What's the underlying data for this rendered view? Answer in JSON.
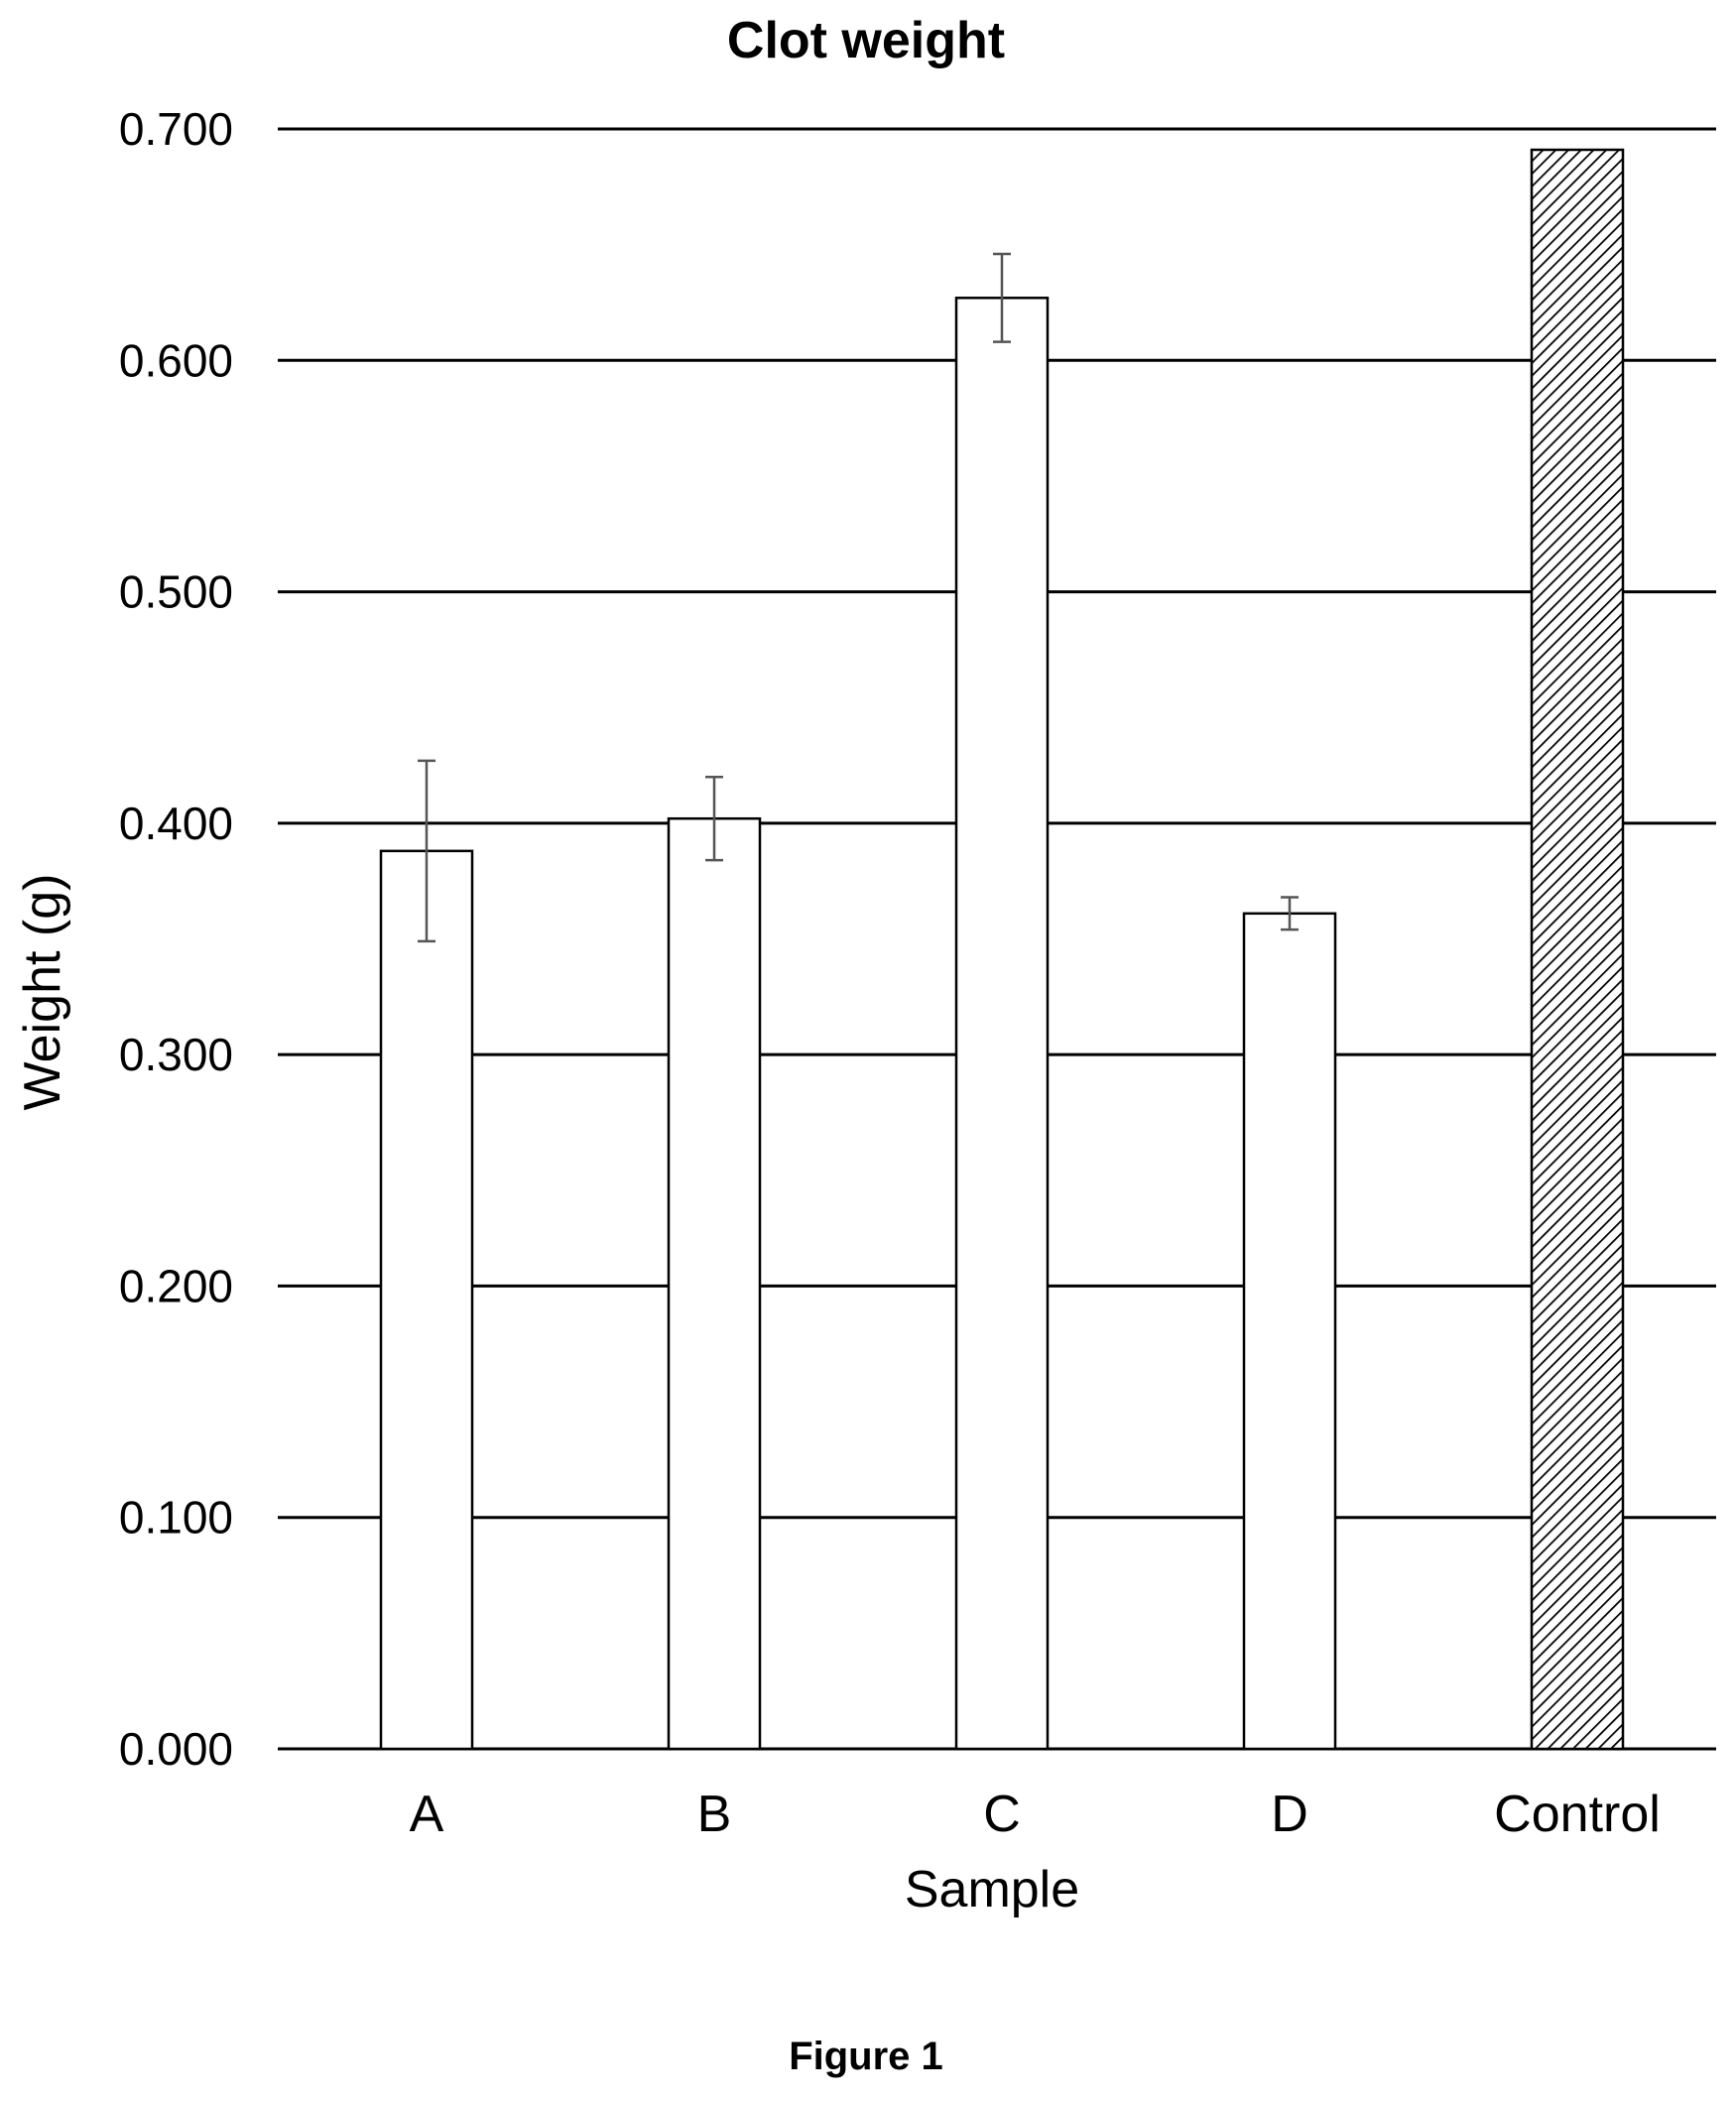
{
  "chart_data": {
    "type": "bar",
    "title": "Clot weight",
    "xlabel": "Sample",
    "ylabel": "Weight (g)",
    "categories": [
      "A",
      "B",
      "C",
      "D",
      "Control"
    ],
    "values": [
      0.388,
      0.402,
      0.627,
      0.361,
      0.691
    ],
    "error": [
      0.039,
      0.018,
      0.019,
      0.007,
      null
    ],
    "fills": [
      "#ffffff",
      "#ffffff",
      "#ffffff",
      "#ffffff",
      "hatched"
    ],
    "ylim": [
      0,
      0.7
    ],
    "yticks": [
      "0.000",
      "0.100",
      "0.200",
      "0.300",
      "0.400",
      "0.500",
      "0.600",
      "0.700"
    ],
    "grid": true,
    "legend": "none"
  },
  "caption": "Figure 1"
}
